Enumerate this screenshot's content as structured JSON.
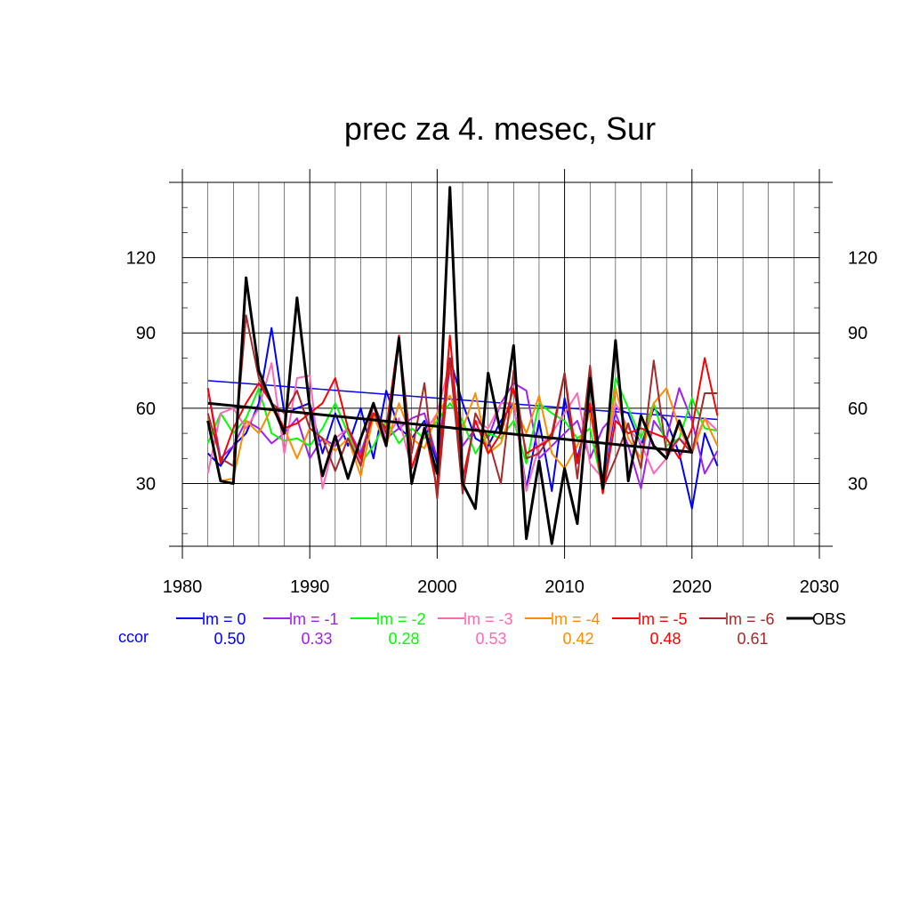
{
  "chart_data": {
    "type": "line",
    "title": "prec za 4. mesec, Sur",
    "xlim": [
      1980,
      2030
    ],
    "ylim": [
      5,
      150
    ],
    "x_ticks": [
      1980,
      1990,
      2000,
      2010,
      2020,
      2030
    ],
    "y_ticks": [
      30,
      60,
      90,
      120
    ],
    "grid": true,
    "legend_position": "bottom",
    "ccor_label": "ccor",
    "ccor_label_color": "#0000ff",
    "years": [
      1982,
      1983,
      1984,
      1985,
      1986,
      1987,
      1988,
      1989,
      1990,
      1991,
      1992,
      1993,
      1994,
      1995,
      1996,
      1997,
      1998,
      1999,
      2000,
      2001,
      2002,
      2003,
      2004,
      2005,
      2006,
      2007,
      2008,
      2009,
      2010,
      2011,
      2012,
      2013,
      2014,
      2015,
      2016,
      2017,
      2018,
      2019,
      2020,
      2021,
      2022
    ],
    "series": [
      {
        "name": "lm = 0",
        "color": "#0000ff",
        "ccor": "0.50",
        "values": [
          42,
          37,
          45,
          50,
          62,
          92,
          58,
          60,
          62,
          42,
          58,
          45,
          60,
          40,
          67,
          52,
          48,
          55,
          38,
          80,
          62,
          48,
          45,
          55,
          62,
          28,
          55,
          27,
          64,
          40,
          60,
          30,
          60,
          58,
          45,
          60,
          55,
          42,
          20,
          50,
          37
        ],
        "trend": [
          71,
          55.5
        ]
      },
      {
        "name": "lm = -1",
        "color": "#a020f0",
        "ccor": "0.33",
        "values": [
          68,
          40,
          45,
          55,
          52,
          46,
          50,
          56,
          40,
          48,
          45,
          52,
          42,
          58,
          48,
          52,
          56,
          58,
          40,
          76,
          45,
          52,
          48,
          62,
          70,
          67,
          40,
          45,
          50,
          55,
          40,
          52,
          58,
          45,
          28,
          55,
          48,
          68,
          55,
          34,
          43
        ],
        "trend": []
      },
      {
        "name": "lm = -2",
        "color": "#00ff00",
        "ccor": "0.28",
        "values": [
          46,
          58,
          50,
          56,
          68,
          50,
          47,
          48,
          45,
          52,
          62,
          50,
          38,
          45,
          55,
          46,
          52,
          48,
          55,
          62,
          55,
          42,
          50,
          48,
          55,
          38,
          62,
          58,
          55,
          48,
          52,
          28,
          72,
          60,
          48,
          62,
          45,
          48,
          64,
          52,
          51
        ],
        "trend": []
      },
      {
        "name": "lm = -3",
        "color": "#ff69b4",
        "ccor": "0.53",
        "values": [
          34,
          58,
          60,
          52,
          60,
          78,
          42,
          72,
          73,
          28,
          48,
          52,
          38,
          62,
          48,
          56,
          36,
          50,
          58,
          78,
          30,
          55,
          52,
          62,
          62,
          27,
          45,
          50,
          58,
          66,
          38,
          32,
          62,
          52,
          46,
          34,
          40,
          48,
          44,
          56,
          51
        ],
        "trend": []
      },
      {
        "name": "lm = -4",
        "color": "#ff8c00",
        "ccor": "0.42",
        "values": [
          56,
          31,
          32,
          55,
          50,
          60,
          52,
          40,
          52,
          48,
          43,
          48,
          33,
          57,
          45,
          62,
          48,
          44,
          58,
          65,
          52,
          66,
          42,
          46,
          62,
          50,
          65,
          42,
          36,
          45,
          58,
          32,
          68,
          48,
          40,
          62,
          68,
          52,
          42,
          56,
          45
        ],
        "trend": []
      },
      {
        "name": "lm = -5",
        "color": "#ff0000",
        "ccor": "0.48",
        "values": [
          68,
          38,
          52,
          62,
          70,
          62,
          52,
          54,
          58,
          62,
          72,
          52,
          40,
          58,
          52,
          89,
          36,
          52,
          28,
          89,
          32,
          55,
          42,
          50,
          68,
          42,
          45,
          48,
          74,
          38,
          62,
          26,
          55,
          50,
          52,
          50,
          48,
          40,
          52,
          80,
          57
        ],
        "trend": []
      },
      {
        "name": "lm = -6",
        "color": "#a52a2a",
        "ccor": "0.61",
        "values": [
          58,
          40,
          37,
          97,
          72,
          62,
          58,
          67,
          52,
          48,
          35,
          48,
          37,
          62,
          50,
          88,
          42,
          70,
          24,
          80,
          26,
          58,
          48,
          30,
          75,
          40,
          42,
          50,
          74,
          32,
          77,
          28,
          40,
          54,
          36,
          79,
          42,
          48,
          42,
          66,
          66
        ],
        "trend": []
      },
      {
        "name": "OBS",
        "color": "#000000",
        "ccor": "",
        "values": [
          55,
          31,
          30,
          112,
          75,
          62,
          50,
          104,
          60,
          33,
          49,
          32,
          48,
          62,
          45,
          88,
          30,
          52,
          34,
          148,
          30,
          20,
          74,
          50,
          85,
          8,
          39,
          6,
          36,
          14,
          72,
          28,
          87,
          31,
          57,
          45,
          40,
          55,
          42,
          null,
          null
        ],
        "trend": [
          62,
          42.5
        ]
      }
    ]
  }
}
